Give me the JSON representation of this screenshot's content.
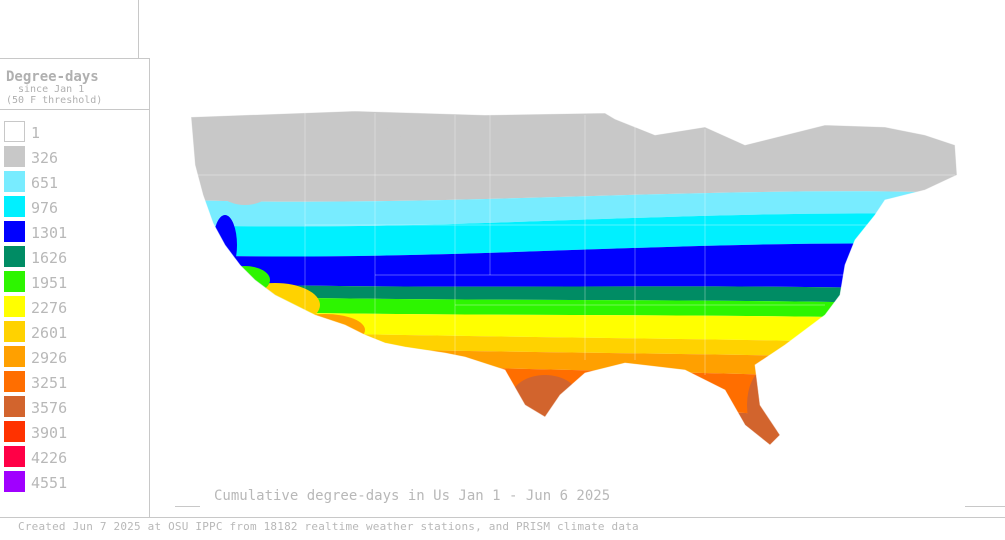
{
  "legend": {
    "title": "Degree-days",
    "subtitle_1": "since Jan 1",
    "subtitle_2": "(50 F threshold)",
    "items": [
      {
        "label": "1",
        "color": "#ffffff"
      },
      {
        "label": "326",
        "color": "#c8c8c8"
      },
      {
        "label": "651",
        "color": "#78ecff"
      },
      {
        "label": "976",
        "color": "#00f0ff"
      },
      {
        "label": "1301",
        "color": "#0000ff"
      },
      {
        "label": "1626",
        "color": "#008c64"
      },
      {
        "label": "1951",
        "color": "#2df500"
      },
      {
        "label": "2276",
        "color": "#ffff00"
      },
      {
        "label": "2601",
        "color": "#ffd200"
      },
      {
        "label": "2926",
        "color": "#ffa000"
      },
      {
        "label": "3251",
        "color": "#ff6e00"
      },
      {
        "label": "3576",
        "color": "#d2642d"
      },
      {
        "label": "3901",
        "color": "#ff3200"
      },
      {
        "label": "4226",
        "color": "#ff0046"
      },
      {
        "label": "4551",
        "color": "#a000ff"
      }
    ]
  },
  "map": {
    "title": "Cumulative degree-days in Us  Jan 1 - Jun 6 2025",
    "band_colors": [
      "#c8c8c8",
      "#78ecff",
      "#00f0ff",
      "#0000ff",
      "#008c64",
      "#2df500",
      "#ffff00",
      "#ffd200",
      "#ffa000",
      "#ff6e00",
      "#d2642d"
    ]
  },
  "footer": "Created Jun 7 2025 at OSU IPPC from 18182 realtime weather stations, and PRISM climate data"
}
